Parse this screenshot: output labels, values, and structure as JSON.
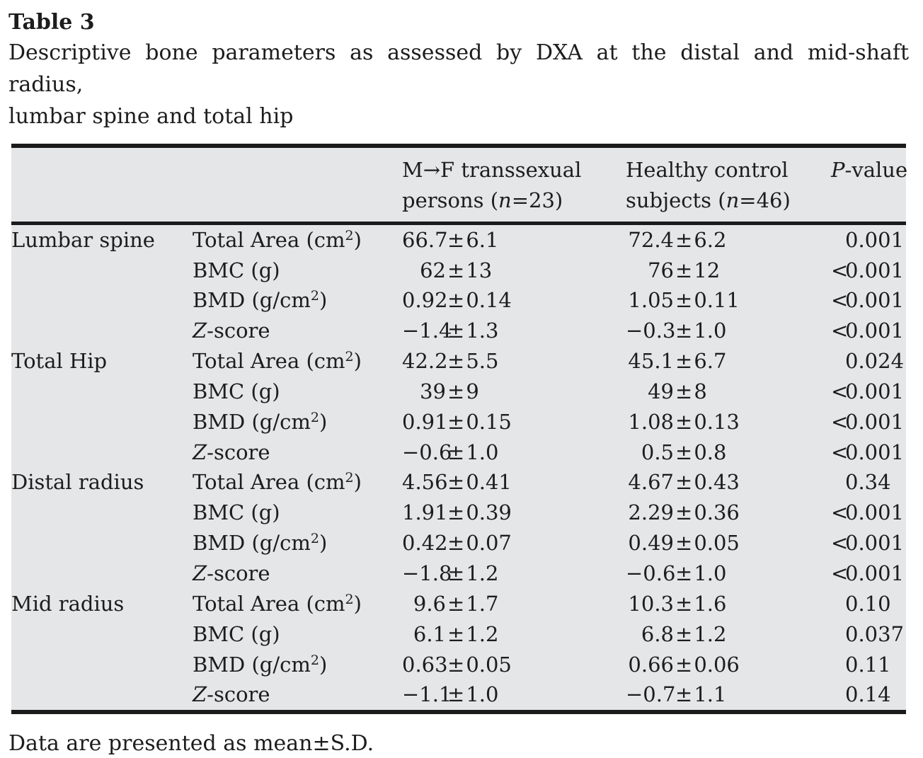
{
  "title": "Table 3",
  "caption_line1": "Descriptive bone parameters as assessed by DXA at the distal and mid-shaft radius,",
  "caption_line2": "lumbar spine and total hip",
  "footnote": "Data are presented as mean±S.D.",
  "signs": {
    "pm": "±"
  },
  "colors": {
    "table_bg": "#e5e6e7",
    "rule": "#1b1b1c",
    "text": "#1d1d1e"
  },
  "header": {
    "col3": {
      "line1": "M→F transsexual",
      "line2_pre": "persons (",
      "n": "n",
      "line2_post": "=23)"
    },
    "col4": {
      "line1": "Healthy control",
      "line2_pre": "subjects (",
      "n": "n",
      "line2_post": "=46)"
    },
    "col5": {
      "italic": "P",
      "rest": "-value"
    }
  },
  "rows": [
    {
      "region": "Lumbar spine",
      "param_it": "",
      "param_pre": "Total Area (cm",
      "param_sup": "2",
      "param_post": ")",
      "g1_mean": "66.7",
      "g1_sd": "6.1",
      "g2_mean": "72.4",
      "g2_sd": "6.2",
      "p_prefix": "",
      "p": "0.001"
    },
    {
      "region": "",
      "param_it": "",
      "param_pre": "BMC (g)",
      "param_sup": "",
      "param_post": "",
      "g1_mean": "62",
      "g1_sd": "13",
      "g2_mean": "76",
      "g2_sd": "12",
      "p_prefix": "<",
      "p": "0.001"
    },
    {
      "region": "",
      "param_it": "",
      "param_pre": "BMD (g/cm",
      "param_sup": "2",
      "param_post": ")",
      "g1_mean": "0.92",
      "g1_sd": "0.14",
      "g2_mean": "1.05",
      "g2_sd": "0.11",
      "p_prefix": "<",
      "p": "0.001"
    },
    {
      "region": "",
      "param_it": "Z",
      "param_pre": "-score",
      "param_sup": "",
      "param_post": "",
      "g1_mean": "−1.4",
      "g1_sd": "1.3",
      "g2_mean": "−0.3",
      "g2_sd": "1.0",
      "p_prefix": "<",
      "p": "0.001"
    },
    {
      "region": "Total Hip",
      "param_it": "",
      "param_pre": "Total Area (cm",
      "param_sup": "2",
      "param_post": ")",
      "g1_mean": "42.2",
      "g1_sd": "5.5",
      "g2_mean": "45.1",
      "g2_sd": "6.7",
      "p_prefix": "",
      "p": "0.024"
    },
    {
      "region": "",
      "param_it": "",
      "param_pre": "BMC (g)",
      "param_sup": "",
      "param_post": "",
      "g1_mean": "39",
      "g1_sd": "9",
      "g2_mean": "49",
      "g2_sd": "8",
      "p_prefix": "<",
      "p": "0.001"
    },
    {
      "region": "",
      "param_it": "",
      "param_pre": "BMD (g/cm",
      "param_sup": "2",
      "param_post": ")",
      "g1_mean": "0.91",
      "g1_sd": "0.15",
      "g2_mean": "1.08",
      "g2_sd": "0.13",
      "p_prefix": "<",
      "p": "0.001"
    },
    {
      "region": "",
      "param_it": "Z",
      "param_pre": "-score",
      "param_sup": "",
      "param_post": "",
      "g1_mean": "−0.6",
      "g1_sd": "1.0",
      "g2_mean": "0.5",
      "g2_sd": "0.8",
      "p_prefix": "<",
      "p": "0.001"
    },
    {
      "region": "Distal radius",
      "param_it": "",
      "param_pre": "Total Area (cm",
      "param_sup": "2",
      "param_post": ")",
      "g1_mean": "4.56",
      "g1_sd": "0.41",
      "g2_mean": "4.67",
      "g2_sd": "0.43",
      "p_prefix": "",
      "p": "0.34"
    },
    {
      "region": "",
      "param_it": "",
      "param_pre": "BMC (g)",
      "param_sup": "",
      "param_post": "",
      "g1_mean": "1.91",
      "g1_sd": "0.39",
      "g2_mean": "2.29",
      "g2_sd": "0.36",
      "p_prefix": "<",
      "p": "0.001"
    },
    {
      "region": "",
      "param_it": "",
      "param_pre": "BMD (g/cm",
      "param_sup": "2",
      "param_post": ")",
      "g1_mean": "0.42",
      "g1_sd": "0.07",
      "g2_mean": "0.49",
      "g2_sd": "0.05",
      "p_prefix": "<",
      "p": "0.001"
    },
    {
      "region": "",
      "param_it": "Z",
      "param_pre": "-score",
      "param_sup": "",
      "param_post": "",
      "g1_mean": "−1.8",
      "g1_sd": "1.2",
      "g2_mean": "−0.6",
      "g2_sd": "1.0",
      "p_prefix": "<",
      "p": "0.001"
    },
    {
      "region": "Mid radius",
      "param_it": "",
      "param_pre": "Total Area (cm",
      "param_sup": "2",
      "param_post": ")",
      "g1_mean": "9.6",
      "g1_sd": "1.7",
      "g2_mean": "10.3",
      "g2_sd": "1.6",
      "p_prefix": "",
      "p": "0.10"
    },
    {
      "region": "",
      "param_it": "",
      "param_pre": "BMC (g)",
      "param_sup": "",
      "param_post": "",
      "g1_mean": "6.1",
      "g1_sd": "1.2",
      "g2_mean": "6.8",
      "g2_sd": "1.2",
      "p_prefix": "",
      "p": "0.037"
    },
    {
      "region": "",
      "param_it": "",
      "param_pre": "BMD (g/cm",
      "param_sup": "2",
      "param_post": ")",
      "g1_mean": "0.63",
      "g1_sd": "0.05",
      "g2_mean": "0.66",
      "g2_sd": "0.06",
      "p_prefix": "",
      "p": "0.11"
    },
    {
      "region": "",
      "param_it": "Z",
      "param_pre": "-score",
      "param_sup": "",
      "param_post": "",
      "g1_mean": "−1.1",
      "g1_sd": "1.0",
      "g2_mean": "−0.7",
      "g2_sd": "1.1",
      "p_prefix": "",
      "p": "0.14"
    }
  ]
}
